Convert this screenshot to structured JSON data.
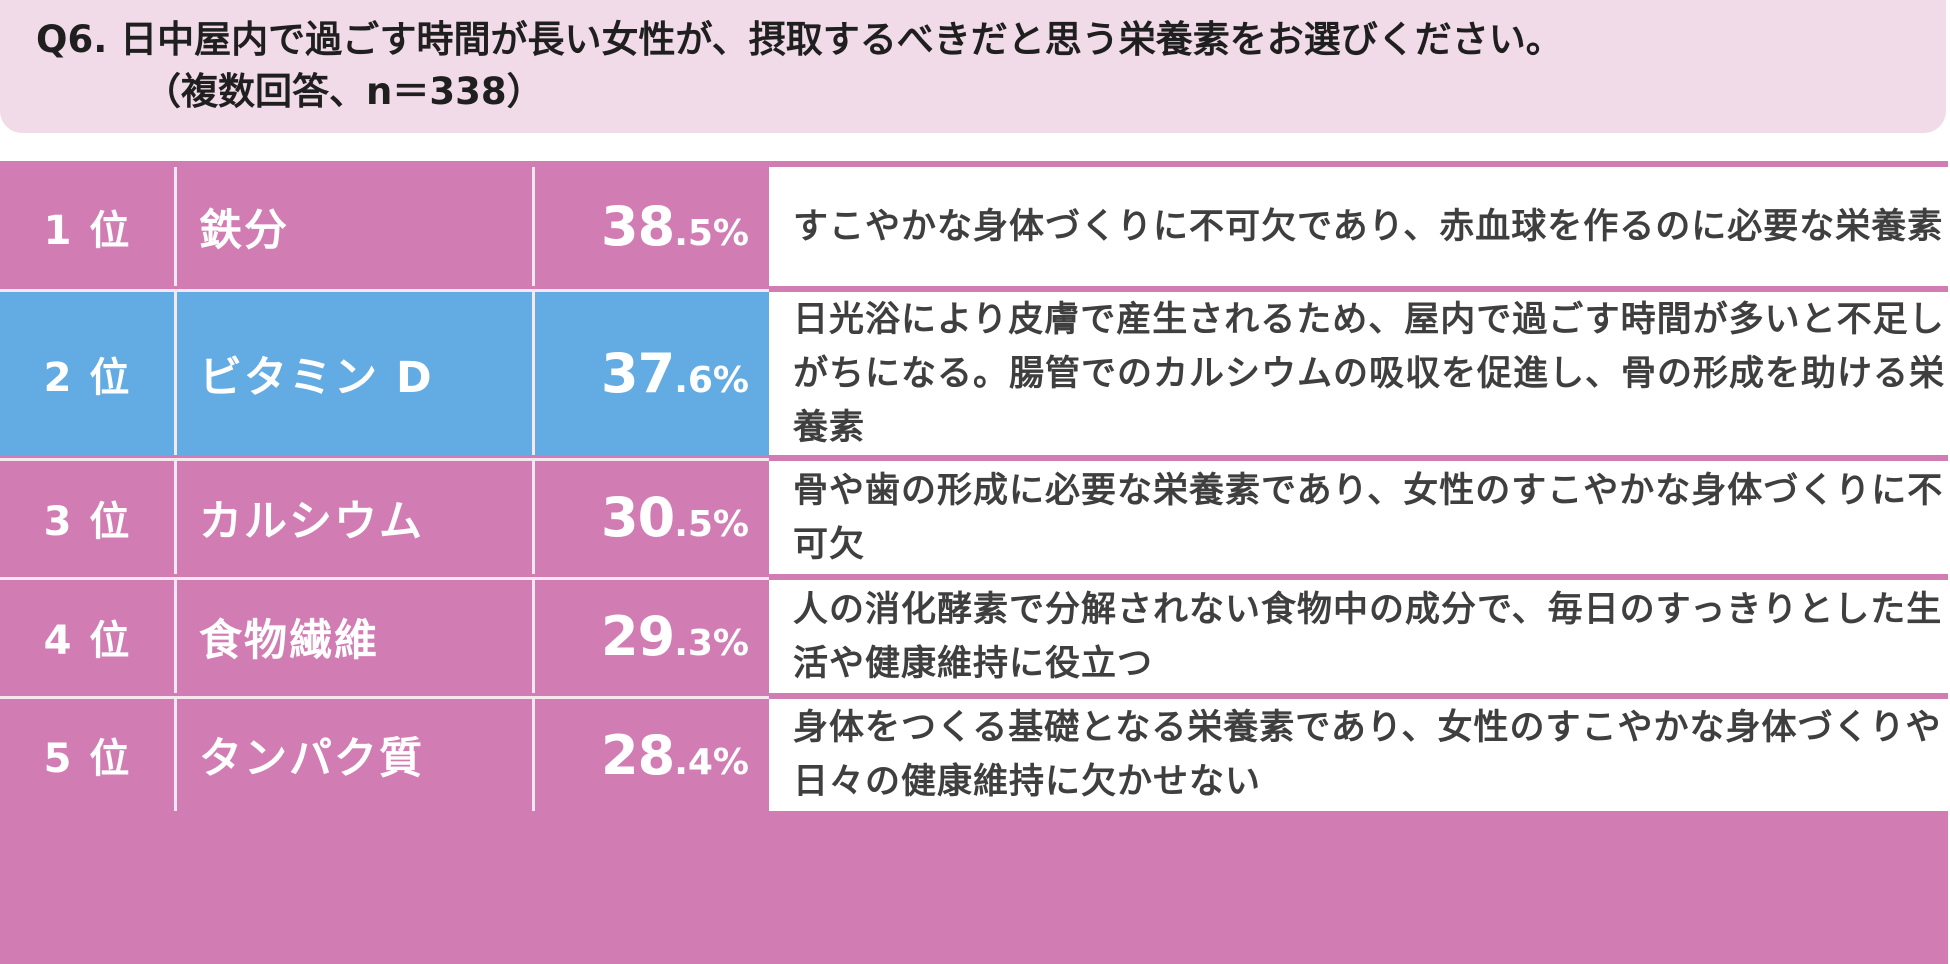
{
  "title": {
    "line1": "Q6. 日中屋内で過ごす時間が長い女性が、摂取するべきだと思う栄養素をお選びください。",
    "line2": "（複数回答、n＝338）"
  },
  "colors": {
    "header_bg": "#f1dbe8",
    "table_bg": "#d17db4",
    "highlight": "#63abe3",
    "desc_bg": "#ffffff"
  },
  "chart_data": {
    "type": "table",
    "title": "Q6. 日中屋内で過ごす時間が長い女性が、摂取するべきだと思う栄養素をお選びください。（複数回答、n＝338）",
    "unit": "%",
    "rows": [
      {
        "rank": "1 位",
        "name": "鉄分",
        "value": 38.5,
        "value_int": "38",
        "value_dec": ".5%",
        "highlight": false,
        "desc": "すこやかな身体づくりに不可欠であり、赤血球を作るのに必要な栄養素"
      },
      {
        "rank": "2 位",
        "name": "ビタミン D",
        "value": 37.6,
        "value_int": "37",
        "value_dec": ".6%",
        "highlight": true,
        "desc": "日光浴により皮膚で産生されるため、屋内で過ごす時間が多いと不足しがちになる。腸管でのカルシウムの吸収を促進し、骨の形成を助ける栄養素"
      },
      {
        "rank": "3 位",
        "name": "カルシウム",
        "value": 30.5,
        "value_int": "30",
        "value_dec": ".5%",
        "highlight": false,
        "desc": "骨や歯の形成に必要な栄養素であり、女性のすこやかな身体づくりに不可欠"
      },
      {
        "rank": "4 位",
        "name": "食物繊維",
        "value": 29.3,
        "value_int": "29",
        "value_dec": ".3%",
        "highlight": false,
        "desc": "人の消化酵素で分解されない食物中の成分で、毎日のすっきりとした生活や健康維持に役立つ"
      },
      {
        "rank": "5 位",
        "name": "タンパク質",
        "value": 28.4,
        "value_int": "28",
        "value_dec": ".4%",
        "highlight": false,
        "desc": "身体をつくる基礎となる栄養素であり、女性のすこやかな身体づくりや日々の健康維持に欠かせない"
      }
    ]
  }
}
